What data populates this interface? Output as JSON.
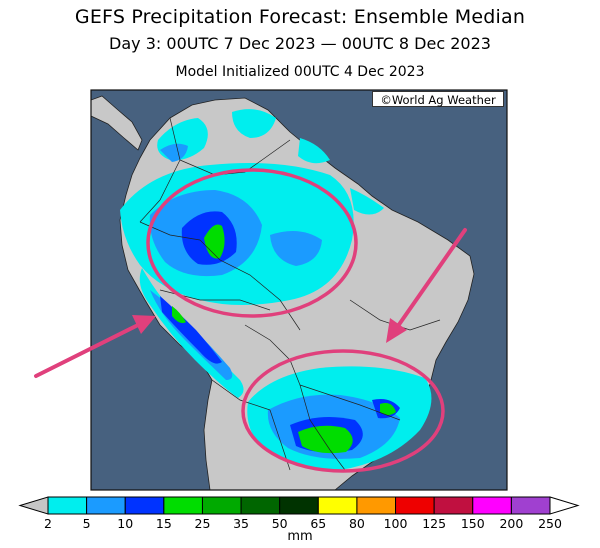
{
  "title": "GEFS Precipitation Forecast: Ensemble Median",
  "subtitle": "Day 3: 00UTC 7 Dec 2023 — 00UTC 8 Dec 2023",
  "init_text": "Model Initialized 00UTC 4 Dec 2023",
  "credit": "©World Ag Weather",
  "legend": {
    "units": "mm",
    "ticks": [
      "2",
      "5",
      "10",
      "15",
      "25",
      "35",
      "50",
      "65",
      "80",
      "100",
      "125",
      "150",
      "200",
      "250"
    ],
    "colors": [
      "#00eeee",
      "#1b9bff",
      "#0033ff",
      "#00dd00",
      "#00aa00",
      "#006600",
      "#003300",
      "#ffff00",
      "#ff9900",
      "#ee0000",
      "#c01040",
      "#ff00ff",
      "#a040d0"
    ],
    "under_color": "#c6c6c6",
    "over_color": "#ffffff"
  },
  "colors": {
    "ocean": "#47617f",
    "land": "#c8c8c8",
    "annotation": "#e0407c"
  }
}
